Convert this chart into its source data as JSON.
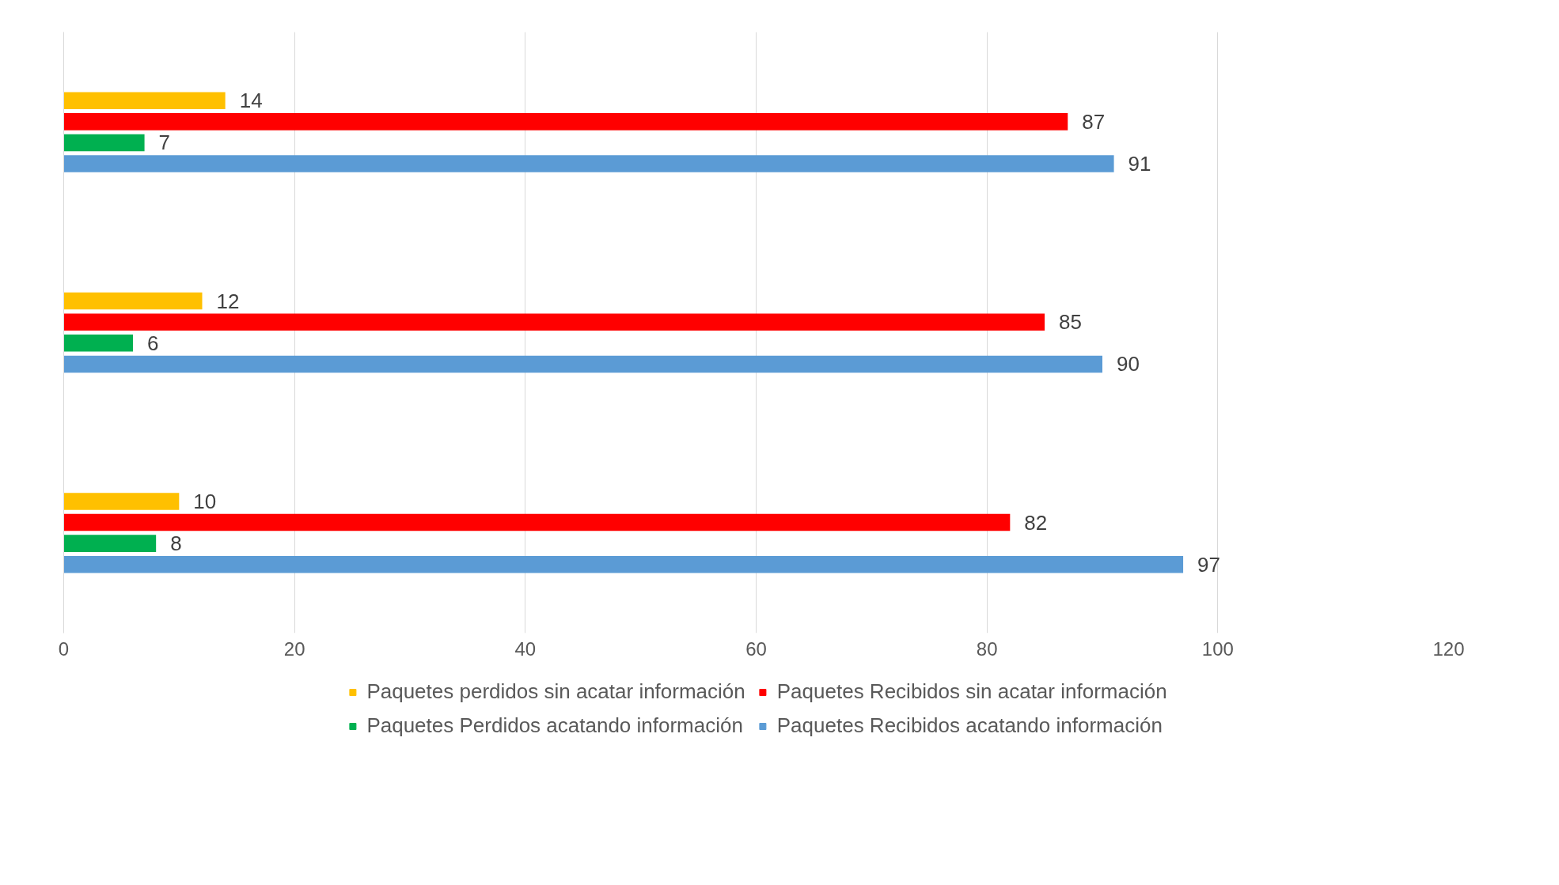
{
  "chart_data": {
    "type": "bar",
    "orientation": "horizontal",
    "categories": [
      null,
      null,
      null
    ],
    "series": [
      {
        "name": "Paquetes perdidos sin acatar información",
        "color": "#ffc000",
        "values": [
          14,
          12,
          10
        ]
      },
      {
        "name": "Paquetes Recibidos sin acatar información",
        "color": "#ff0000",
        "values": [
          87,
          85,
          82
        ]
      },
      {
        "name": "Paquetes Perdidos acatando información",
        "color": "#00b050",
        "values": [
          7,
          6,
          8
        ]
      },
      {
        "name": "Paquetes Recibidos acatando información",
        "color": "#5b9bd5",
        "values": [
          91,
          90,
          97
        ]
      }
    ],
    "xlim": [
      0,
      120
    ],
    "xticks": [
      0,
      20,
      40,
      60,
      80,
      100,
      120
    ],
    "grid": "x",
    "legend": "bottom",
    "data_labels": true
  }
}
